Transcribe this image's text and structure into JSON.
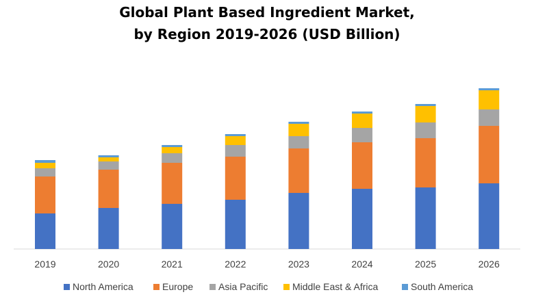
{
  "chart_data": {
    "type": "bar",
    "stacked": true,
    "title": "Global Plant Based Ingredient Market,",
    "subtitle": "by Region 2019-2026 (USD Billion)",
    "categories": [
      "2019",
      "2020",
      "2021",
      "2022",
      "2023",
      "2024",
      "2025",
      "2026"
    ],
    "series": [
      {
        "name": "North America",
        "color": "#4472C4",
        "values": [
          52,
          60,
          66,
          72,
          82,
          88,
          90,
          96
        ]
      },
      {
        "name": "Europe",
        "color": "#ED7D31",
        "values": [
          54,
          56,
          60,
          63,
          65,
          68,
          72,
          84
        ]
      },
      {
        "name": "Asia Pacific",
        "color": "#A5A5A5",
        "values": [
          12,
          12,
          14,
          17,
          18,
          21,
          23,
          24
        ]
      },
      {
        "name": "Middle East & Africa",
        "color": "#FFC000",
        "values": [
          8,
          6,
          9,
          13,
          18,
          21,
          24,
          28
        ]
      },
      {
        "name": "South America",
        "color": "#5B9BD5",
        "values": [
          4,
          3,
          3,
          3,
          3,
          3,
          3,
          3
        ]
      }
    ],
    "xlabel": "",
    "ylabel": "",
    "ylim": [
      0,
      260
    ],
    "grid": false,
    "legend_position": "bottom"
  }
}
